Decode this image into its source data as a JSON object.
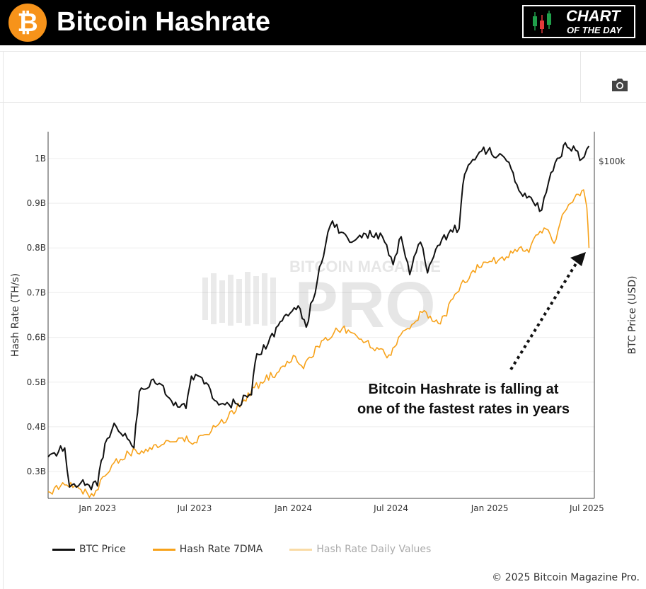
{
  "header": {
    "title": "Bitcoin Hashrate",
    "logo_symbol": "₿",
    "badge_line1": "CHART",
    "badge_line2": "OF THE DAY"
  },
  "colors": {
    "btc_price": "#111111",
    "hashrate_7dma": "#f7a21a",
    "hashrate_daily": "#f9dba6",
    "header_bg": "#000000",
    "brand_orange": "#f7931a"
  },
  "toolbar": {
    "camera_icon": "camera-icon"
  },
  "annotation": {
    "line1": "Bitcoin Hashrate is falling at",
    "line2": "one of the fastest rates in years"
  },
  "watermark": {
    "line1": "BITCOIN MAGAZINE",
    "line2": "PRO"
  },
  "legend": {
    "items": [
      {
        "label": "BTC Price"
      },
      {
        "label": "Hash Rate 7DMA"
      },
      {
        "label": "Hash Rate Daily Values"
      }
    ]
  },
  "copyright": "© 2025 Bitcoin Magazine Pro.",
  "chart_data": {
    "type": "line",
    "title": "Bitcoin Hashrate",
    "ylabel": "Hash Rate (TH/s)",
    "y2label": "BTC Price (USD)",
    "ylim": [
      240000000,
      1060000000
    ],
    "y2_scale": "log",
    "y2_tick_label": "$100k",
    "y2_tick_value": 100000,
    "yticks": [
      {
        "value": 300000000,
        "label": "0.3B"
      },
      {
        "value": 400000000,
        "label": "0.4B"
      },
      {
        "value": 500000000,
        "label": "0.5B"
      },
      {
        "value": 600000000,
        "label": "0.6B"
      },
      {
        "value": 700000000,
        "label": "0.7B"
      },
      {
        "value": 800000000,
        "label": "0.8B"
      },
      {
        "value": 900000000,
        "label": "0.9B"
      },
      {
        "value": 1000000000,
        "label": "1B"
      }
    ],
    "xlim": [
      "2022-10-01",
      "2025-07-15"
    ],
    "xticks": [
      {
        "value": "2023-01-01",
        "label": "Jan 2023"
      },
      {
        "value": "2023-07-01",
        "label": "Jul 2023"
      },
      {
        "value": "2024-01-01",
        "label": "Jan 2024"
      },
      {
        "value": "2024-07-01",
        "label": "Jul 2024"
      },
      {
        "value": "2025-01-01",
        "label": "Jan 2025"
      },
      {
        "value": "2025-07-01",
        "label": "Jul 2025"
      }
    ],
    "grid": true,
    "legend_position": "bottom-left",
    "series": [
      {
        "name": "BTC Price",
        "axis": "right",
        "x": [
          "2022-10-01",
          "2022-11-01",
          "2022-11-10",
          "2022-12-01",
          "2023-01-01",
          "2023-01-15",
          "2023-02-01",
          "2023-03-10",
          "2023-03-20",
          "2023-04-15",
          "2023-05-15",
          "2023-06-15",
          "2023-06-25",
          "2023-07-15",
          "2023-08-15",
          "2023-09-15",
          "2023-10-15",
          "2023-10-25",
          "2023-11-15",
          "2023-12-15",
          "2024-01-10",
          "2024-01-25",
          "2024-02-15",
          "2024-03-01",
          "2024-03-14",
          "2024-04-15",
          "2024-05-15",
          "2024-06-15",
          "2024-07-05",
          "2024-07-20",
          "2024-08-05",
          "2024-08-25",
          "2024-09-07",
          "2024-09-30",
          "2024-10-20",
          "2024-11-05",
          "2024-11-12",
          "2024-11-22",
          "2024-12-17",
          "2025-01-20",
          "2025-02-10",
          "2025-02-28",
          "2025-03-15",
          "2025-04-08",
          "2025-04-25",
          "2025-05-15",
          "2025-05-22",
          "2025-06-10",
          "2025-06-22",
          "2025-07-05"
        ],
        "y": [
          19500,
          20500,
          16500,
          16900,
          16600,
          21000,
          23500,
          20500,
          28000,
          30000,
          27000,
          25500,
          30500,
          30200,
          26000,
          26200,
          27500,
          34500,
          36500,
          42500,
          45000,
          40000,
          52000,
          63000,
          72000,
          64000,
          67000,
          66000,
          56500,
          66000,
          53500,
          64000,
          54000,
          63000,
          68500,
          69000,
          88000,
          98000,
          106000,
          104500,
          96000,
          84000,
          82500,
          76500,
          94000,
          103000,
          111000,
          106500,
          101500,
          109000
        ]
      },
      {
        "name": "Hash Rate 7DMA",
        "axis": "left",
        "x": [
          "2022-10-01",
          "2022-11-01",
          "2022-12-01",
          "2022-12-25",
          "2023-01-15",
          "2023-02-01",
          "2023-03-01",
          "2023-04-01",
          "2023-05-01",
          "2023-06-01",
          "2023-07-01",
          "2023-08-01",
          "2023-09-01",
          "2023-10-01",
          "2023-11-01",
          "2023-12-01",
          "2024-01-01",
          "2024-01-20",
          "2024-02-15",
          "2024-03-01",
          "2024-04-01",
          "2024-04-20",
          "2024-05-15",
          "2024-06-01",
          "2024-07-01",
          "2024-07-15",
          "2024-08-01",
          "2024-09-01",
          "2024-10-01",
          "2024-11-01",
          "2024-12-01",
          "2025-01-01",
          "2025-02-01",
          "2025-02-25",
          "2025-03-15",
          "2025-04-01",
          "2025-04-20",
          "2025-05-01",
          "2025-05-20",
          "2025-06-01",
          "2025-06-15",
          "2025-06-25",
          "2025-07-01",
          "2025-07-05"
        ],
        "y": [
          255000000,
          270000000,
          260000000,
          245000000,
          290000000,
          320000000,
          340000000,
          350000000,
          360000000,
          375000000,
          365000000,
          390000000,
          420000000,
          460000000,
          500000000,
          520000000,
          560000000,
          530000000,
          580000000,
          600000000,
          620000000,
          610000000,
          590000000,
          570000000,
          560000000,
          600000000,
          620000000,
          660000000,
          630000000,
          700000000,
          750000000,
          770000000,
          780000000,
          800000000,
          790000000,
          830000000,
          840000000,
          810000000,
          880000000,
          900000000,
          920000000,
          930000000,
          890000000,
          800000000
        ]
      },
      {
        "name": "Hash Rate Daily Values",
        "axis": "left",
        "hidden": true,
        "x": [],
        "y": []
      }
    ]
  }
}
